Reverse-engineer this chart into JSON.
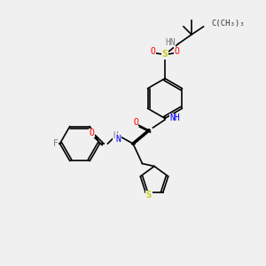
{
  "bg_color": "#f0f0f0",
  "bond_color": "#000000",
  "title": "",
  "atoms": {
    "F": {
      "color": "#808080",
      "label": "F"
    },
    "O_red": {
      "color": "#ff0000",
      "label": "O"
    },
    "N_blue": {
      "color": "#0000ff",
      "label": "N"
    },
    "S_yellow": {
      "color": "#cccc00",
      "label": "S"
    },
    "H_gray": {
      "color": "#808080",
      "label": "H"
    },
    "C_black": {
      "color": "#000000",
      "label": ""
    }
  }
}
